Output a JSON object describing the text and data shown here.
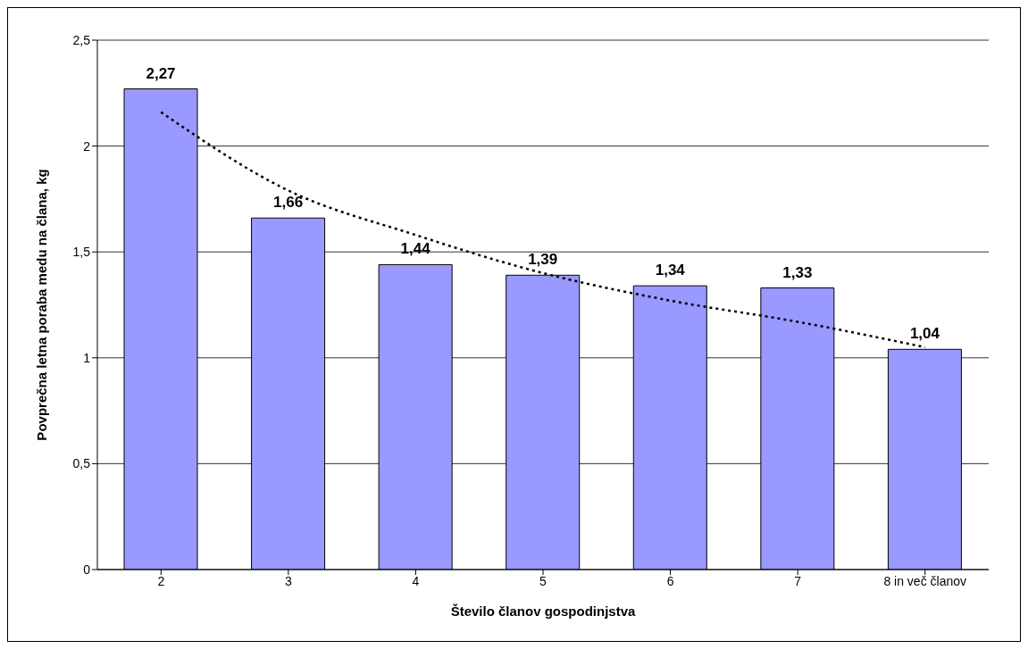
{
  "chart_data": {
    "type": "bar",
    "xlabel": "Število članov gospodinjstva",
    "ylabel": "Povprečna letna poraba medu na člana, kg",
    "categories": [
      "2",
      "3",
      "4",
      "5",
      "6",
      "7",
      "8 in več članov"
    ],
    "series": [
      {
        "color": "#9999ff",
        "values": [
          2.27,
          1.66,
          1.44,
          1.39,
          1.34,
          1.33,
          1.04
        ],
        "value_labels": [
          "2,27",
          "1,66",
          "1,44",
          "1,39",
          "1,34",
          "1,33",
          "1,04"
        ]
      },
      {
        "type": "line",
        "color": "#000000",
        "line_style": "dotted",
        "marker": "none",
        "x": [
          "2",
          "3",
          "4",
          "5",
          "6",
          "7",
          "8 in več članov"
        ],
        "values": [
          2.16,
          1.79,
          1.58,
          1.4,
          1.27,
          1.17,
          1.05
        ]
      }
    ],
    "ylim": [
      0,
      2.5
    ],
    "yticks": [
      0,
      {
        "value": 0.5,
        "label": "0,5"
      },
      1,
      {
        "value": 1.5,
        "label": "1,5"
      },
      2,
      {
        "value": 2.5,
        "label": "2,5"
      }
    ],
    "grid": "y",
    "legend": false
  }
}
